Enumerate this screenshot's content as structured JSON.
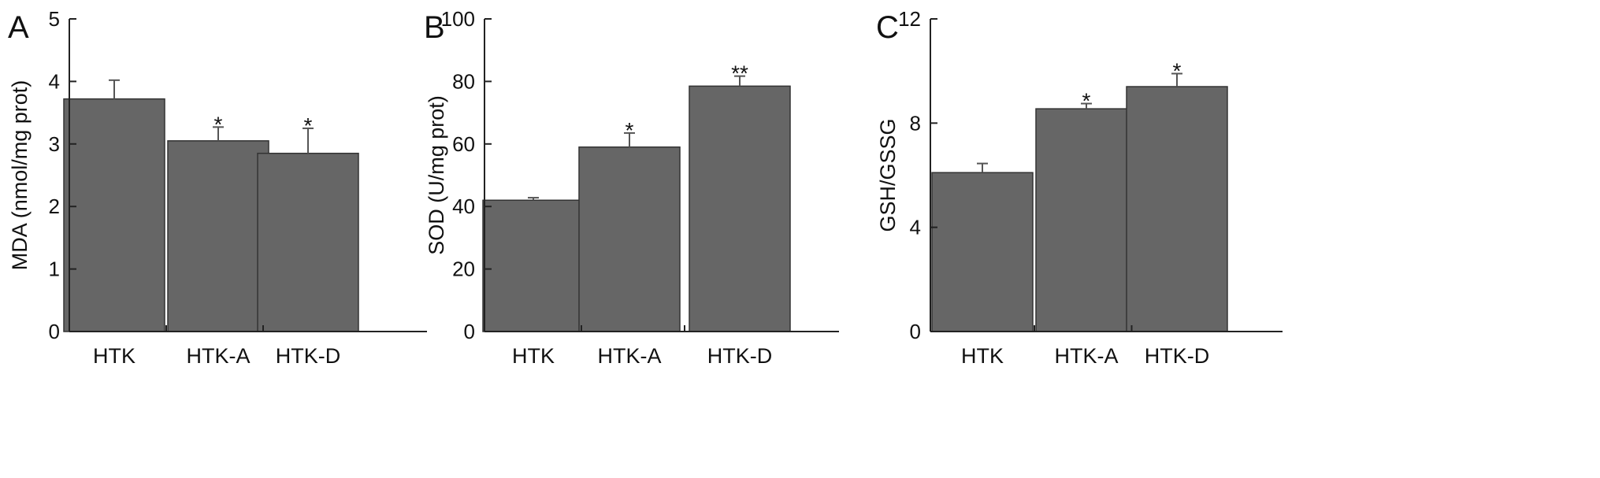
{
  "chart_data": [
    {
      "type": "bar",
      "panel": "A",
      "categories": [
        "HTK",
        "HTK-A",
        "HTK-D"
      ],
      "values": [
        3.72,
        3.05,
        2.85
      ],
      "errors": [
        0.3,
        0.22,
        0.4
      ],
      "significance": [
        "",
        "*",
        "*"
      ],
      "ylabel": "MDA (nmol/mg prot)",
      "ylim": [
        0,
        5
      ],
      "yticks": [
        "0",
        "1",
        "2",
        "3",
        "4",
        "5"
      ],
      "bar_color": "#666666",
      "grid": false
    },
    {
      "type": "bar",
      "panel": "B",
      "categories": [
        "HTK",
        "HTK-A",
        "HTK-D"
      ],
      "values": [
        42,
        59,
        78.5
      ],
      "errors": [
        0.8,
        4.5,
        3.2
      ],
      "significance": [
        "",
        "*",
        "**"
      ],
      "ylabel": "SOD (U/mg prot)",
      "ylim": [
        0,
        100
      ],
      "yticks": [
        "0",
        "20",
        "40",
        "60",
        "80",
        "100"
      ],
      "bar_color": "#666666",
      "grid": false
    },
    {
      "type": "bar",
      "panel": "C",
      "categories": [
        "HTK",
        "HTK-A",
        "HTK-D"
      ],
      "values": [
        6.1,
        8.55,
        9.4
      ],
      "errors": [
        0.35,
        0.2,
        0.5
      ],
      "significance": [
        "",
        "*",
        "*"
      ],
      "ylabel": "GSH/GSSG",
      "ylim": [
        0,
        12
      ],
      "yticks": [
        "0",
        "4",
        "8",
        "12"
      ],
      "bar_color": "#666666",
      "grid": false
    }
  ]
}
